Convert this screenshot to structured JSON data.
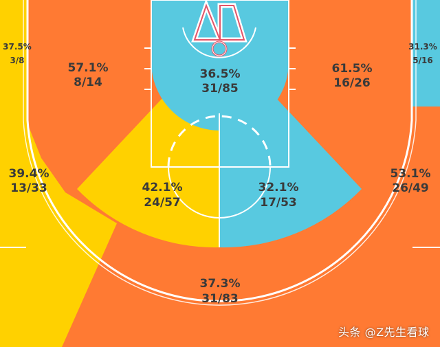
{
  "colors": {
    "orange": "#FF7A33",
    "yellow": "#FFD100",
    "blue": "#58C9E0",
    "lines": "#ffffff",
    "rim": "#E35468",
    "text": "#3a3a3a"
  },
  "chart_data": {
    "type": "shot-chart",
    "zones": [
      {
        "id": "left-corner-3",
        "pct": "37.5%",
        "made": 3,
        "att": 8,
        "frac": "3/8",
        "color": "yellow"
      },
      {
        "id": "left-baseline-mid",
        "pct": "57.1%",
        "made": 8,
        "att": 14,
        "frac": "8/14",
        "color": "orange"
      },
      {
        "id": "restricted-paint",
        "pct": "36.5%",
        "made": 31,
        "att": 85,
        "frac": "31/85",
        "color": "blue"
      },
      {
        "id": "right-baseline-mid",
        "pct": "61.5%",
        "made": 16,
        "att": 26,
        "frac": "16/26",
        "color": "orange"
      },
      {
        "id": "right-corner-3",
        "pct": "31.3%",
        "made": 5,
        "att": 16,
        "frac": "5/16",
        "color": "blue"
      },
      {
        "id": "left-wing-3",
        "pct": "39.4%",
        "made": 13,
        "att": 33,
        "frac": "13/33",
        "color": "yellow"
      },
      {
        "id": "left-elbow-mid",
        "pct": "42.1%",
        "made": 24,
        "att": 57,
        "frac": "24/57",
        "color": "yellow"
      },
      {
        "id": "right-elbow-mid",
        "pct": "32.1%",
        "made": 17,
        "att": 53,
        "frac": "17/53",
        "color": "blue"
      },
      {
        "id": "right-wing-3",
        "pct": "53.1%",
        "made": 26,
        "att": 49,
        "frac": "26/49",
        "color": "orange"
      },
      {
        "id": "top-key-3",
        "pct": "37.3%",
        "made": 31,
        "att": 83,
        "frac": "31/83",
        "color": "orange"
      }
    ]
  },
  "watermark": "头条 @Z先生看球"
}
